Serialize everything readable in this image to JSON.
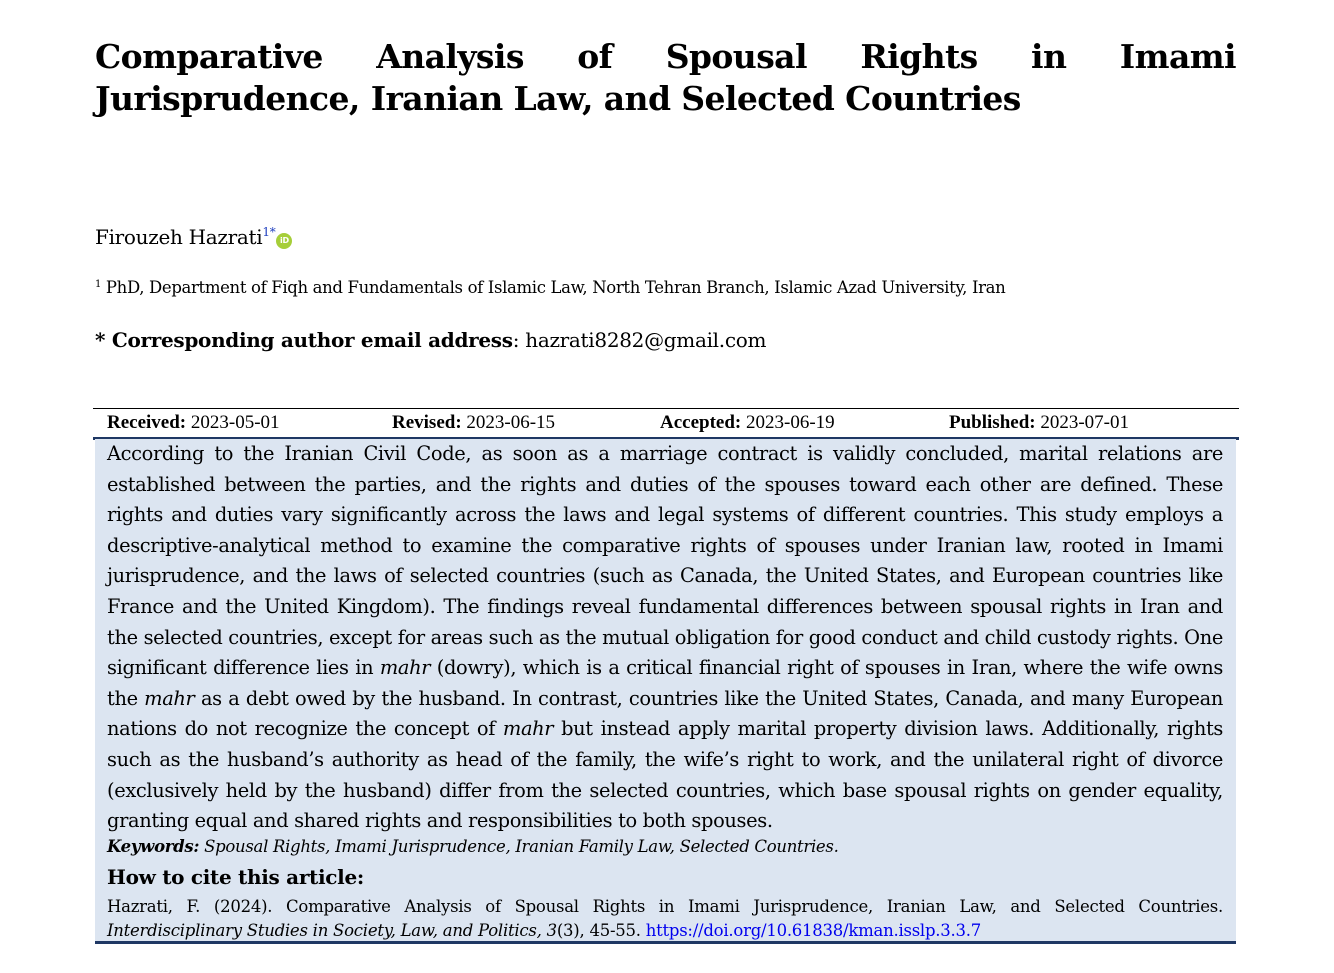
{
  "title": "Comparative Analysis of Spousal Rights in Imami Jurisprudence, Iranian Law, and Selected Countries",
  "author": {
    "name": "Firouzeh Hazrati",
    "affiliation_ref": "1*",
    "orcid_icon": "orcid-icon",
    "orcid_color": "#a6ce39"
  },
  "affiliation": {
    "number": "1",
    "text": "PhD, Department of Fiqh and Fundamentals of Islamic Law, North Tehran Branch, Islamic Azad University, Iran"
  },
  "corresponding": {
    "label": "* Corresponding author email address",
    "separator": ":",
    "email": "hazrati8282@gmail.com"
  },
  "dates": {
    "received_label": "Received:",
    "received": "2023-05-01",
    "revised_label": "Revised:",
    "revised": "2023-06-15",
    "accepted_label": "Accepted:",
    "accepted": "2023-06-19",
    "published_label": "Published:",
    "published": "2023-07-01"
  },
  "abstract": {
    "background_color": "#dce5f1",
    "rule_color": "#1f3864",
    "part1": "According to the Iranian Civil Code, as soon as a marriage contract is validly concluded, marital relations are established between the parties, and the rights and duties of the spouses toward each other are defined. These rights and duties vary significantly across the laws and legal systems of different countries. This study employs a descriptive-analytical method to examine the comparative rights of spouses under Iranian law, rooted in Imami jurisprudence, and the laws of selected countries (such as Canada, the United States, and European countries like France and the United Kingdom). The findings reveal fundamental differences between spousal rights in Iran and the selected countries, except for areas such as the mutual obligation for good conduct and child custody rights. One significant difference lies in ",
    "term": "mahr",
    "part2": " (dowry), which is a critical financial right of spouses in Iran, where the wife owns the ",
    "part3": " as a debt owed by the husband. In contrast, countries like the United States, Canada, and many European nations do not recognize the concept of ",
    "part4": " but instead apply marital property division laws. Additionally, rights such as the husband’s authority as head of the family, the wife’s right to work, and the unilateral right of divorce (exclusively held by the husband) differ from the selected countries, which base spousal rights on gender equality, granting equal and shared rights and responsibilities to both spouses."
  },
  "keywords": {
    "label": "Keywords:",
    "list": "Spousal Rights, Imami Jurisprudence, Iranian Family Law, Selected Countries."
  },
  "citation": {
    "heading": "How to cite this article:",
    "text": "Hazrati, F. (2024). Comparative Analysis of Spousal Rights in Imami Jurisprudence, Iranian Law, and Selected Countries. ",
    "journal": "Interdisciplinary Studies in Society, Law, and Politics, 3",
    "issue_pages": "(3), 45-55. ",
    "doi": "https://doi.org/10.61838/kman.isslp.3.3.7",
    "link_color": "#0000ee"
  }
}
